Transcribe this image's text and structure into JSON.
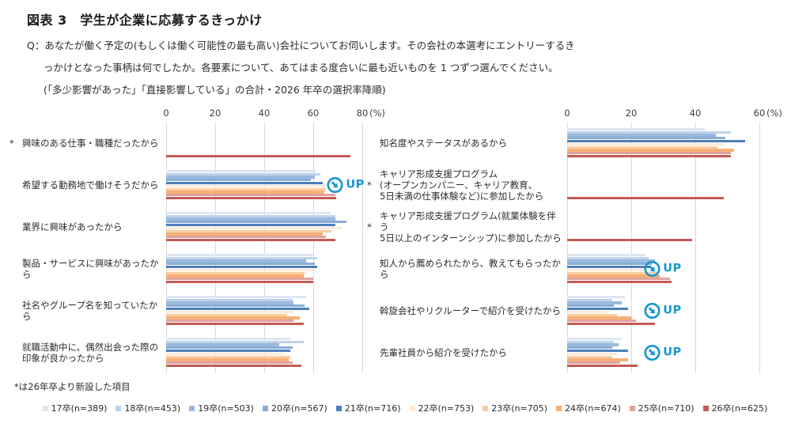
{
  "header": {
    "title": "図表 3　学生が企業に応募するきっかけ",
    "question_lines": [
      "Q：あなたが働く予定の(もしくは働く可能性の最も高い)会社についてお伺いします。その会社の本選考にエントリーするき",
      "っかけとなった事柄は何でしたか。各要素について、あてはまる度合いに最も近いものを 1 つずつ選んでください。",
      "(「多少影響があった」「直接影響している」の合計・2026 年卒の選択率降順)"
    ]
  },
  "footnote": "*は26年卒より新設した項目",
  "up_marker": {
    "label": "UP",
    "color": "#1896d3",
    "icon": "circled-down-right-arrow"
  },
  "chart_data": {
    "type": "bar",
    "orientation": "horizontal",
    "unit": "%",
    "grid": true,
    "legend_position": "bottom",
    "series": [
      {
        "name": "17卒(n=389)",
        "color": "#dde7f3"
      },
      {
        "name": "18卒(n=453)",
        "color": "#bed2ea"
      },
      {
        "name": "19卒(n=503)",
        "color": "#9ab9de"
      },
      {
        "name": "20卒(n=567)",
        "color": "#8aaed6"
      },
      {
        "name": "21卒(n=716)",
        "color": "#4d7ebc"
      },
      {
        "name": "22卒(n=753)",
        "color": "#fdebd8"
      },
      {
        "name": "23卒(n=705)",
        "color": "#fbcda1"
      },
      {
        "name": "24卒(n=674)",
        "color": "#f7b076"
      },
      {
        "name": "25卒(n=710)",
        "color": "#e0a19e"
      },
      {
        "name": "26卒(n=625)",
        "color": "#c35b54"
      }
    ],
    "panels": [
      {
        "axis_ticks": [
          0,
          20,
          40,
          60,
          80
        ],
        "axis_max": 80,
        "axis_unit_label": "(%)",
        "up_marker_left_pct": 82,
        "categories": [
          {
            "label": "興味のある仕事・職種だったから",
            "asterisk": true,
            "up": false,
            "values": [
              null,
              null,
              null,
              null,
              null,
              null,
              null,
              null,
              null,
              75
            ]
          },
          {
            "label": "希望する勤務地で働けそうだから",
            "asterisk": false,
            "up": true,
            "values": [
              61,
              63,
              60.5,
              59,
              64,
              65,
              65,
              64.5,
              69,
              69.5
            ]
          },
          {
            "label": "業界に興味があったから",
            "asterisk": false,
            "up": false,
            "values": [
              67,
              69,
              69,
              73.5,
              69,
              71.5,
              67.5,
              64,
              65,
              69
            ]
          },
          {
            "label": "製品・サービスに興味があったから",
            "asterisk": false,
            "up": false,
            "values": [
              60,
              61.5,
              57,
              60.5,
              61.5,
              61,
              56.5,
              56,
              60,
              60
            ]
          },
          {
            "label": "社名やグループ名を知っていたから",
            "asterisk": false,
            "up": false,
            "values": [
              57,
              51.5,
              52,
              56.5,
              58.5,
              52,
              49.5,
              54.5,
              52,
              56
            ]
          },
          {
            "label": "就職活動中に、偶然出会った際の\n印象が良かったから",
            "asterisk": false,
            "up": false,
            "values": [
              50.5,
              56,
              46,
              51.5,
              50.5,
              48.5,
              50.5,
              50,
              51.5,
              55
            ]
          }
        ]
      },
      {
        "axis_ticks": [
          0,
          20,
          40,
          60
        ],
        "axis_max": 60,
        "axis_unit_label": "(%)",
        "up_marker_left_pct": 40,
        "categories": [
          {
            "label": "知名度やステータスがあるから",
            "asterisk": false,
            "up": false,
            "values": [
              43,
              51,
              46.5,
              49.5,
              55.5,
              49.5,
              47,
              52,
              51,
              51
            ]
          },
          {
            "label": "キャリア形成支援プログラム\n(オープンカンパニー、キャリア教育、\n 5日未満の仕事体験など)に参加したから",
            "asterisk": true,
            "up": false,
            "values": [
              null,
              null,
              null,
              null,
              null,
              null,
              null,
              null,
              null,
              49
            ]
          },
          {
            "label": "キャリア形成支援プログラム(就業体験を伴う\n 5日以上のインターンシップ)に参加したから",
            "asterisk": true,
            "up": false,
            "values": [
              null,
              null,
              null,
              null,
              null,
              null,
              null,
              null,
              null,
              39
            ]
          },
          {
            "label": "知人から薦められたから、教えてもらったから",
            "asterisk": false,
            "up": true,
            "values": [
              24.5,
              25.5,
              27.5,
              26.5,
              26,
              24,
              28,
              29,
              32,
              32.5
            ]
          },
          {
            "label": "斡旋会社やリクルーターで紹介を受けたから",
            "asterisk": false,
            "up": true,
            "values": [
              18,
              14,
              17,
              14.5,
              19,
              12.5,
              15.5,
              20,
              21.5,
              27.5
            ]
          },
          {
            "label": "先輩社員から紹介を受けたから",
            "asterisk": false,
            "up": true,
            "values": [
              17,
              14.5,
              16,
              14,
              19,
              15.5,
              14,
              19,
              16.5,
              22
            ]
          }
        ]
      }
    ]
  }
}
